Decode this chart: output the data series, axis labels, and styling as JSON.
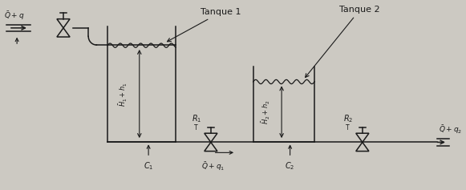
{
  "bg_color": "#ccc9c2",
  "line_color": "#1a1a1a",
  "text_color": "#1a1a1a",
  "tank1_label": "Tanque 1",
  "tank2_label": "Tanque 2",
  "h1_label": "$\\bar{H}_1+h_1$",
  "h2_label": "$\\bar{H}_2+h_2$",
  "r1_label": "$R_1$",
  "r2_label": "$R_2$",
  "c1_label": "$C_1$",
  "c2_label": "$C_2$",
  "q_in_label": "$\\bar{Q}+q$",
  "q1_label": "$\\bar{Q}+q_1$",
  "q2_label": "$\\bar{Q}+q_2$",
  "figsize": [
    5.81,
    2.37
  ],
  "dpi": 100
}
